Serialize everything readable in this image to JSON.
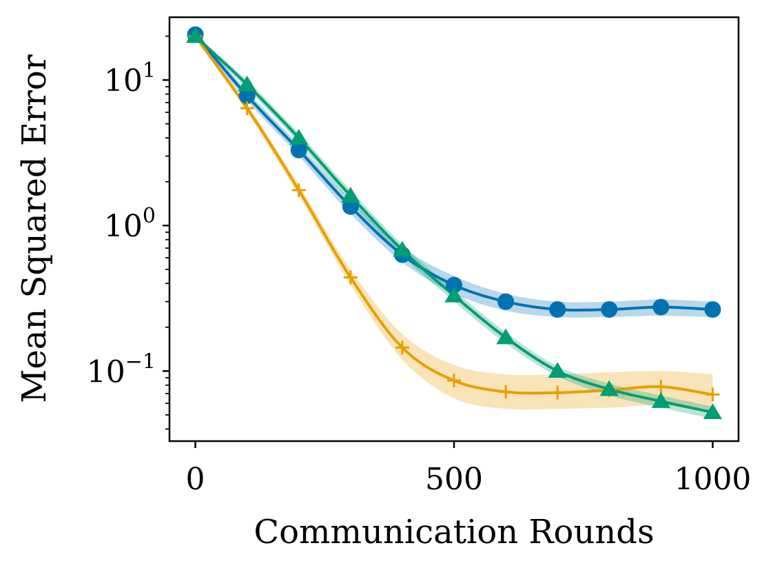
{
  "chart_data": {
    "type": "line",
    "title": "",
    "xlabel": "Communication Rounds",
    "ylabel": "Mean Squared Error",
    "xlim": [
      -50,
      1050
    ],
    "ylim": [
      0.033,
      27
    ],
    "yscale": "log",
    "grid": false,
    "x_ticks": [
      {
        "value": 0,
        "label": "0"
      },
      {
        "value": 500,
        "label": "500"
      },
      {
        "value": 1000,
        "label": "1000"
      }
    ],
    "y_ticks": [
      {
        "value": 0.1,
        "base": "10",
        "exp": "−1"
      },
      {
        "value": 1,
        "base": "10",
        "exp": "0"
      },
      {
        "value": 10,
        "base": "10",
        "exp": "1"
      }
    ],
    "x": [
      0,
      100,
      200,
      300,
      400,
      500,
      600,
      700,
      800,
      900,
      1000
    ],
    "series": [
      {
        "name": "blue (circle)",
        "color": "#0072b2",
        "marker": "circle",
        "values": [
          20.5,
          7.8,
          3.3,
          1.35,
          0.63,
          0.39,
          0.3,
          0.265,
          0.265,
          0.275,
          0.265
        ],
        "band_lower": [
          19.5,
          7.2,
          3.0,
          1.2,
          0.56,
          0.34,
          0.26,
          0.235,
          0.235,
          0.24,
          0.235
        ],
        "band_upper": [
          21.5,
          8.4,
          3.6,
          1.5,
          0.71,
          0.45,
          0.34,
          0.3,
          0.3,
          0.31,
          0.3
        ]
      },
      {
        "name": "orange (plus)",
        "color": "#e69f00",
        "marker": "plus",
        "values": [
          20.0,
          6.4,
          1.75,
          0.44,
          0.145,
          0.086,
          0.072,
          0.071,
          0.074,
          0.078,
          0.069
        ],
        "band_lower": [
          19.5,
          6.0,
          1.6,
          0.39,
          0.12,
          0.065,
          0.055,
          0.055,
          0.056,
          0.058,
          0.052
        ],
        "band_upper": [
          20.5,
          6.8,
          1.9,
          0.5,
          0.18,
          0.11,
          0.095,
          0.095,
          0.098,
          0.1,
          0.095
        ]
      },
      {
        "name": "green (triangle)",
        "color": "#009e73",
        "marker": "triangle",
        "values": [
          20.0,
          9.3,
          4.0,
          1.6,
          0.68,
          0.33,
          0.17,
          0.1,
          0.075,
          0.062,
          0.052
        ],
        "band_lower": [
          19.5,
          8.7,
          3.7,
          1.45,
          0.62,
          0.3,
          0.155,
          0.092,
          0.068,
          0.056,
          0.047
        ],
        "band_upper": [
          20.5,
          9.9,
          4.3,
          1.75,
          0.74,
          0.36,
          0.185,
          0.108,
          0.082,
          0.068,
          0.057
        ]
      }
    ]
  }
}
